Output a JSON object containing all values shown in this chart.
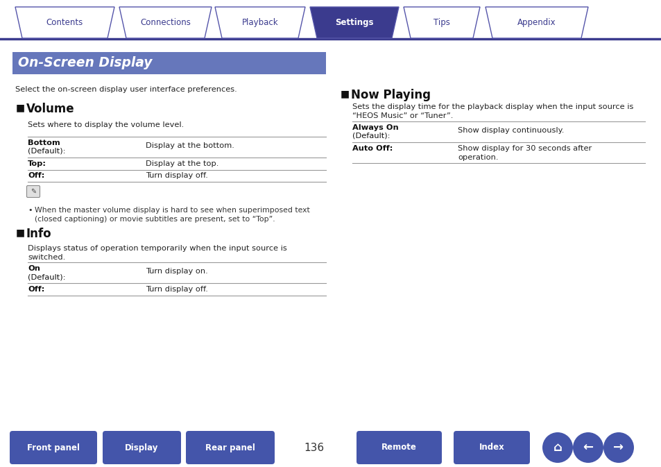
{
  "bg_color": "#ffffff",
  "tab_labels": [
    "Contents",
    "Connections",
    "Playback",
    "Settings",
    "Tips",
    "Appendix"
  ],
  "active_tab": 3,
  "tab_color_active": "#3b3b8e",
  "tab_color_inactive": "#ffffff",
  "tab_border_color": "#5555aa",
  "tab_text_active": "#ffffff",
  "tab_text_inactive": "#3b3b8e",
  "header_bg": "#6677bb",
  "header_text": "On-Screen Display",
  "header_text_color": "#ffffff",
  "intro_text": "Select the on-screen display user interface preferences.",
  "section1_title": "Volume",
  "section1_intro": "Sets where to display the volume level.",
  "section1_rows": [
    [
      "Bottom\n(Default):",
      "Display at the bottom."
    ],
    [
      "Top:",
      "Display at the top."
    ],
    [
      "Off:",
      "Turn display off."
    ]
  ],
  "note_text": "When the master volume display is hard to see when superimposed text\n(closed captioning) or movie subtitles are present, set to “Top”.",
  "section2_title": "Info",
  "section2_intro": "Displays status of operation temporarily when the input source is\nswitched.",
  "section2_rows": [
    [
      "On\n(Default):",
      "Turn display on."
    ],
    [
      "Off:",
      "Turn display off."
    ]
  ],
  "section3_title": "Now Playing",
  "section3_intro": "Sets the display time for the playback display when the input source is\n“HEOS Music” or “Tuner”.",
  "section3_rows": [
    [
      "Always On\n(Default):",
      "Show display continuously."
    ],
    [
      "Auto Off:",
      "Show display for 30 seconds after\noperation."
    ]
  ],
  "bottom_buttons": [
    "Front panel",
    "Display",
    "Rear panel",
    "Remote",
    "Index"
  ],
  "page_number": "136",
  "button_color": "#4455aa",
  "button_text_color": "#ffffff",
  "divider_color": "#3b3b8e",
  "tab_line_color": "#3b3b8e"
}
